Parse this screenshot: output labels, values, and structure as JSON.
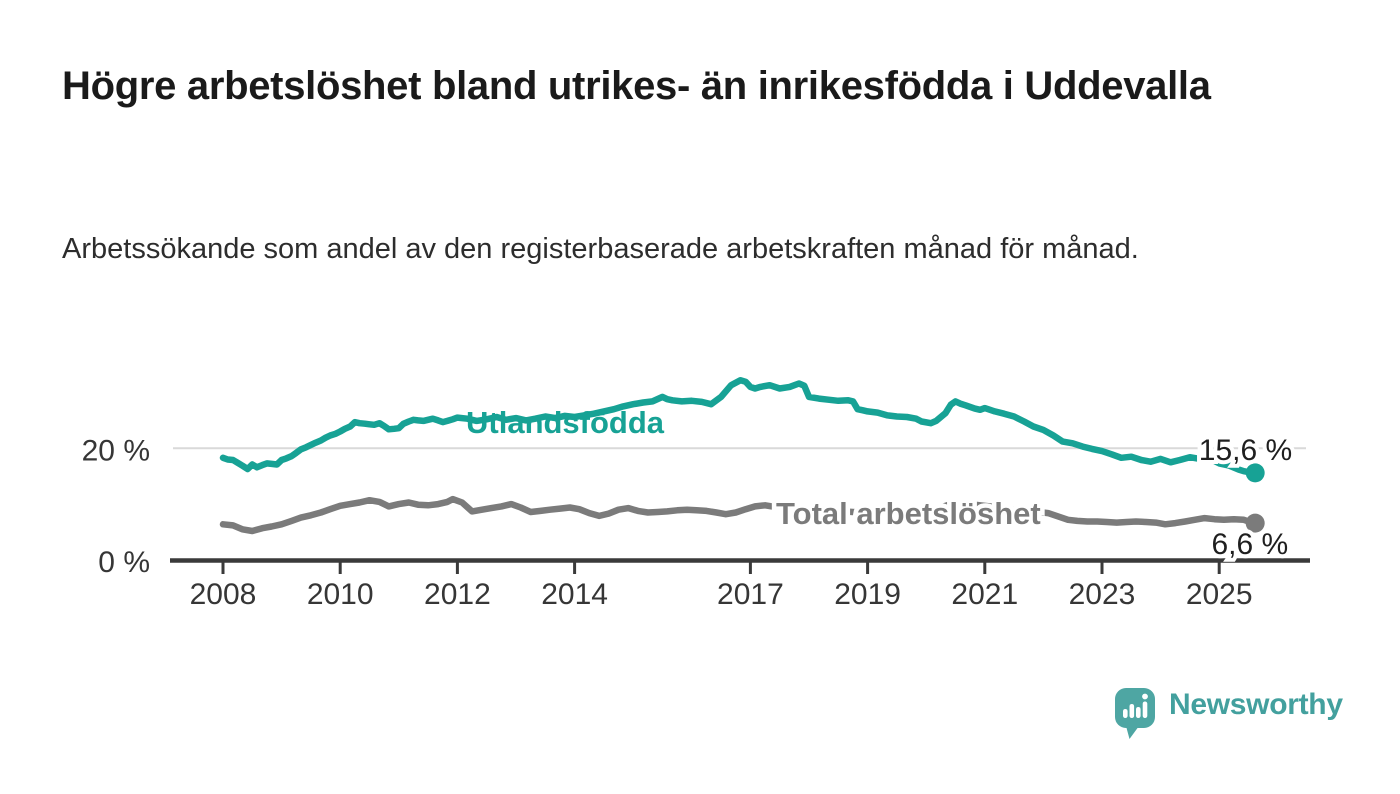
{
  "header": {
    "title": "Högre arbetslöshet bland utrikes- än inrikesfödda i Uddevalla",
    "subtitle": "Arbetssökande som andel av den registerbaserade arbetskraften månad för månad."
  },
  "brand": {
    "name": "Newsworthy",
    "logo_icon": "bar-chart-speech-bubble-icon",
    "color": "#4ea6a3"
  },
  "colors": {
    "foreign_born_line": "#17a295",
    "total_line": "#7b7b7b",
    "gridline": "#d9d9d9",
    "axis": "#3a3a3a",
    "tick_text": "#363636",
    "end_label_text": "#1f1f1f"
  },
  "chart_data": {
    "type": "line",
    "xlabel": "",
    "ylabel": "",
    "xlim": [
      2007.1,
      2026.5
    ],
    "ylim": [
      0,
      35
    ],
    "grid": "horizontal-20-only",
    "legend_position": "inline-on-lines",
    "x_ticks": [
      2008,
      2010,
      2012,
      2014,
      2017,
      2019,
      2021,
      2023,
      2025
    ],
    "y_ticks": [
      {
        "value": 20,
        "label": "20 %"
      },
      {
        "value": 0,
        "label": "0 %"
      }
    ],
    "series": [
      {
        "name": "Utlandsfödda",
        "color": "#17a295",
        "end_label": "15,6 %",
        "last_value": 15.6,
        "points": [
          [
            2008.0,
            18.3
          ],
          [
            2008.08,
            18.0
          ],
          [
            2008.17,
            17.9
          ],
          [
            2008.25,
            17.4
          ],
          [
            2008.33,
            16.9
          ],
          [
            2008.42,
            16.3
          ],
          [
            2008.5,
            17.1
          ],
          [
            2008.58,
            16.6
          ],
          [
            2008.67,
            17.0
          ],
          [
            2008.75,
            17.3
          ],
          [
            2008.83,
            17.2
          ],
          [
            2008.92,
            17.1
          ],
          [
            2009.0,
            17.9
          ],
          [
            2009.08,
            18.2
          ],
          [
            2009.17,
            18.6
          ],
          [
            2009.25,
            19.2
          ],
          [
            2009.33,
            19.8
          ],
          [
            2009.42,
            20.2
          ],
          [
            2009.5,
            20.6
          ],
          [
            2009.58,
            21.0
          ],
          [
            2009.67,
            21.4
          ],
          [
            2009.75,
            21.9
          ],
          [
            2009.83,
            22.3
          ],
          [
            2009.92,
            22.6
          ],
          [
            2010.0,
            23.0
          ],
          [
            2010.08,
            23.5
          ],
          [
            2010.17,
            23.9
          ],
          [
            2010.25,
            24.7
          ],
          [
            2010.33,
            24.5
          ],
          [
            2010.42,
            24.4
          ],
          [
            2010.5,
            24.3
          ],
          [
            2010.58,
            24.2
          ],
          [
            2010.67,
            24.5
          ],
          [
            2010.75,
            24.0
          ],
          [
            2010.83,
            23.4
          ],
          [
            2010.92,
            23.5
          ],
          [
            2011.0,
            23.6
          ],
          [
            2011.08,
            24.4
          ],
          [
            2011.17,
            24.8
          ],
          [
            2011.25,
            25.1
          ],
          [
            2011.33,
            25.0
          ],
          [
            2011.42,
            24.9
          ],
          [
            2011.5,
            25.1
          ],
          [
            2011.58,
            25.3
          ],
          [
            2011.67,
            25.0
          ],
          [
            2011.75,
            24.7
          ],
          [
            2011.83,
            24.9
          ],
          [
            2011.92,
            25.2
          ],
          [
            2012.0,
            25.5
          ],
          [
            2012.17,
            25.3
          ],
          [
            2012.33,
            24.9
          ],
          [
            2012.5,
            25.2
          ],
          [
            2012.67,
            25.6
          ],
          [
            2012.83,
            25.1
          ],
          [
            2013.0,
            25.4
          ],
          [
            2013.17,
            25.0
          ],
          [
            2013.33,
            25.3
          ],
          [
            2013.5,
            25.7
          ],
          [
            2013.67,
            25.4
          ],
          [
            2013.83,
            25.8
          ],
          [
            2014.0,
            25.6
          ],
          [
            2014.17,
            25.9
          ],
          [
            2014.33,
            26.2
          ],
          [
            2014.5,
            26.6
          ],
          [
            2014.67,
            27.0
          ],
          [
            2014.83,
            27.5
          ],
          [
            2015.0,
            27.9
          ],
          [
            2015.17,
            28.2
          ],
          [
            2015.33,
            28.4
          ],
          [
            2015.5,
            29.2
          ],
          [
            2015.58,
            28.8
          ],
          [
            2015.67,
            28.6
          ],
          [
            2015.83,
            28.4
          ],
          [
            2016.0,
            28.5
          ],
          [
            2016.17,
            28.3
          ],
          [
            2016.33,
            27.9
          ],
          [
            2016.5,
            29.2
          ],
          [
            2016.67,
            31.3
          ],
          [
            2016.83,
            32.2
          ],
          [
            2016.92,
            31.9
          ],
          [
            2017.0,
            31.0
          ],
          [
            2017.08,
            30.7
          ],
          [
            2017.17,
            31.0
          ],
          [
            2017.33,
            31.3
          ],
          [
            2017.5,
            30.7
          ],
          [
            2017.67,
            31.0
          ],
          [
            2017.83,
            31.6
          ],
          [
            2017.92,
            31.2
          ],
          [
            2018.0,
            29.2
          ],
          [
            2018.17,
            28.9
          ],
          [
            2018.33,
            28.7
          ],
          [
            2018.5,
            28.5
          ],
          [
            2018.67,
            28.6
          ],
          [
            2018.75,
            28.4
          ],
          [
            2018.83,
            27.0
          ],
          [
            2018.92,
            26.8
          ],
          [
            2019.0,
            26.6
          ],
          [
            2019.17,
            26.4
          ],
          [
            2019.33,
            25.9
          ],
          [
            2019.5,
            25.7
          ],
          [
            2019.67,
            25.6
          ],
          [
            2019.83,
            25.3
          ],
          [
            2019.92,
            24.8
          ],
          [
            2020.08,
            24.5
          ],
          [
            2020.17,
            24.9
          ],
          [
            2020.33,
            26.3
          ],
          [
            2020.42,
            27.8
          ],
          [
            2020.5,
            28.4
          ],
          [
            2020.58,
            28.0
          ],
          [
            2020.67,
            27.7
          ],
          [
            2020.83,
            27.1
          ],
          [
            2020.92,
            26.9
          ],
          [
            2021.0,
            27.2
          ],
          [
            2021.17,
            26.6
          ],
          [
            2021.33,
            26.2
          ],
          [
            2021.5,
            25.7
          ],
          [
            2021.67,
            24.8
          ],
          [
            2021.83,
            23.9
          ],
          [
            2022.0,
            23.3
          ],
          [
            2022.17,
            22.3
          ],
          [
            2022.33,
            21.2
          ],
          [
            2022.5,
            20.9
          ],
          [
            2022.67,
            20.3
          ],
          [
            2022.83,
            19.9
          ],
          [
            2023.0,
            19.5
          ],
          [
            2023.17,
            18.9
          ],
          [
            2023.33,
            18.3
          ],
          [
            2023.5,
            18.5
          ],
          [
            2023.67,
            17.9
          ],
          [
            2023.83,
            17.6
          ],
          [
            2024.0,
            18.1
          ],
          [
            2024.17,
            17.5
          ],
          [
            2024.33,
            17.9
          ],
          [
            2024.5,
            18.4
          ],
          [
            2024.67,
            18.1
          ],
          [
            2024.83,
            18.2
          ],
          [
            2025.0,
            17.3
          ],
          [
            2025.17,
            16.9
          ],
          [
            2025.33,
            16.2
          ],
          [
            2025.42,
            15.9
          ],
          [
            2025.58,
            15.6
          ]
        ]
      },
      {
        "name": "Total arbetslöshet",
        "color": "#7b7b7b",
        "end_label": "6,6 %",
        "last_value": 6.6,
        "points": [
          [
            2008.0,
            6.4
          ],
          [
            2008.17,
            6.2
          ],
          [
            2008.33,
            5.5
          ],
          [
            2008.5,
            5.2
          ],
          [
            2008.67,
            5.7
          ],
          [
            2008.83,
            6.0
          ],
          [
            2009.0,
            6.4
          ],
          [
            2009.17,
            7.0
          ],
          [
            2009.33,
            7.6
          ],
          [
            2009.5,
            8.0
          ],
          [
            2009.67,
            8.5
          ],
          [
            2009.83,
            9.1
          ],
          [
            2010.0,
            9.7
          ],
          [
            2010.17,
            10.0
          ],
          [
            2010.33,
            10.3
          ],
          [
            2010.5,
            10.7
          ],
          [
            2010.67,
            10.4
          ],
          [
            2010.83,
            9.6
          ],
          [
            2011.0,
            10.0
          ],
          [
            2011.17,
            10.3
          ],
          [
            2011.33,
            9.9
          ],
          [
            2011.5,
            9.8
          ],
          [
            2011.67,
            10.0
          ],
          [
            2011.83,
            10.4
          ],
          [
            2011.92,
            10.9
          ],
          [
            2012.08,
            10.3
          ],
          [
            2012.25,
            8.7
          ],
          [
            2012.42,
            9.0
          ],
          [
            2012.58,
            9.3
          ],
          [
            2012.75,
            9.6
          ],
          [
            2012.92,
            10.0
          ],
          [
            2013.08,
            9.4
          ],
          [
            2013.25,
            8.6
          ],
          [
            2013.42,
            8.8
          ],
          [
            2013.58,
            9.0
          ],
          [
            2013.75,
            9.2
          ],
          [
            2013.92,
            9.4
          ],
          [
            2014.08,
            9.1
          ],
          [
            2014.25,
            8.4
          ],
          [
            2014.42,
            7.9
          ],
          [
            2014.58,
            8.3
          ],
          [
            2014.75,
            9.0
          ],
          [
            2014.92,
            9.3
          ],
          [
            2015.08,
            8.8
          ],
          [
            2015.25,
            8.5
          ],
          [
            2015.42,
            8.6
          ],
          [
            2015.58,
            8.7
          ],
          [
            2015.75,
            8.9
          ],
          [
            2015.92,
            9.0
          ],
          [
            2016.08,
            8.9
          ],
          [
            2016.25,
            8.8
          ],
          [
            2016.42,
            8.5
          ],
          [
            2016.58,
            8.2
          ],
          [
            2016.75,
            8.5
          ],
          [
            2016.92,
            9.1
          ],
          [
            2017.08,
            9.6
          ],
          [
            2017.25,
            9.8
          ],
          [
            2017.42,
            9.5
          ],
          [
            2017.58,
            9.4
          ],
          [
            2017.75,
            9.3
          ],
          [
            2017.92,
            9.2
          ],
          [
            2018.08,
            9.0
          ],
          [
            2018.25,
            8.9
          ],
          [
            2018.42,
            8.8
          ],
          [
            2018.58,
            8.7
          ],
          [
            2018.75,
            8.6
          ],
          [
            2018.92,
            8.5
          ],
          [
            2019.08,
            8.4
          ],
          [
            2019.25,
            8.3
          ],
          [
            2019.42,
            8.3
          ],
          [
            2019.58,
            8.4
          ],
          [
            2019.75,
            8.5
          ],
          [
            2019.92,
            8.6
          ],
          [
            2020.08,
            8.8
          ],
          [
            2020.25,
            9.4
          ],
          [
            2020.42,
            10.0
          ],
          [
            2020.58,
            10.2
          ],
          [
            2020.75,
            10.0
          ],
          [
            2020.92,
            9.8
          ],
          [
            2021.08,
            9.6
          ],
          [
            2021.25,
            9.4
          ],
          [
            2021.42,
            9.1
          ],
          [
            2021.58,
            8.9
          ],
          [
            2021.75,
            8.7
          ],
          [
            2021.92,
            8.6
          ],
          [
            2022.08,
            8.4
          ],
          [
            2022.25,
            7.8
          ],
          [
            2022.42,
            7.2
          ],
          [
            2022.58,
            7.0
          ],
          [
            2022.75,
            6.9
          ],
          [
            2022.92,
            6.9
          ],
          [
            2023.08,
            6.8
          ],
          [
            2023.25,
            6.7
          ],
          [
            2023.42,
            6.8
          ],
          [
            2023.58,
            6.9
          ],
          [
            2023.75,
            6.8
          ],
          [
            2023.92,
            6.7
          ],
          [
            2024.08,
            6.4
          ],
          [
            2024.25,
            6.6
          ],
          [
            2024.42,
            6.9
          ],
          [
            2024.58,
            7.2
          ],
          [
            2024.75,
            7.5
          ],
          [
            2024.92,
            7.3
          ],
          [
            2025.08,
            7.2
          ],
          [
            2025.25,
            7.3
          ],
          [
            2025.42,
            7.2
          ],
          [
            2025.58,
            6.6
          ]
        ]
      }
    ]
  }
}
